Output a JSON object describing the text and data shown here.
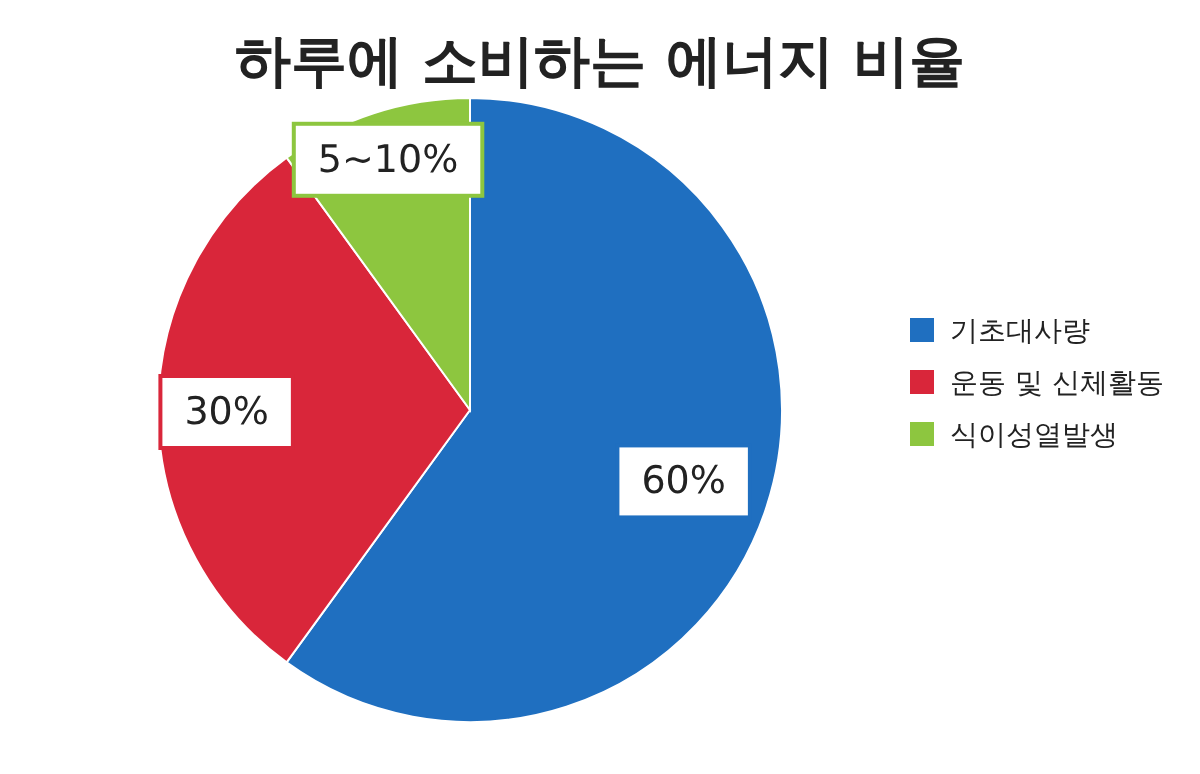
{
  "chart_data": {
    "type": "pie",
    "title": "하루에 소비하는 에너지 비율",
    "categories": [
      "기초대사량",
      "운동 및 신체활동",
      "식이성열발생"
    ],
    "values": [
      60,
      30,
      10
    ],
    "value_labels": [
      "60%",
      "30%",
      "5~10%"
    ],
    "colors": [
      "#1f6fc0",
      "#d9263a",
      "#8dc63f"
    ],
    "legend": "right"
  }
}
